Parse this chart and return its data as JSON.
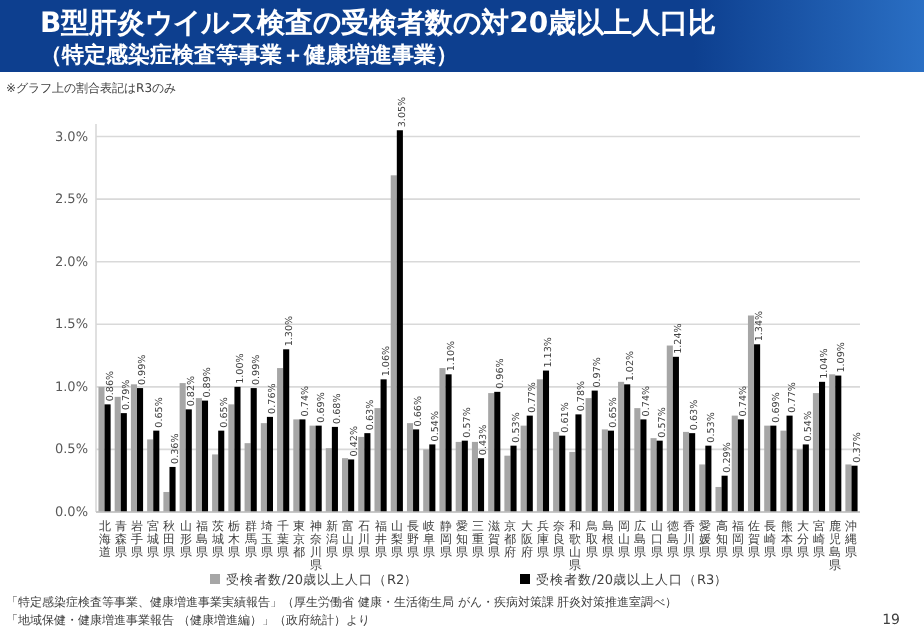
{
  "chart_data": {
    "type": "bar",
    "title": "B型肝炎ウイルス検査の受検者数の対20歳以上人口比",
    "subtitle": "（特定感染症検査等事業＋健康増進事業）",
    "categories": [
      "北海道",
      "青森県",
      "岩手県",
      "宮城県",
      "秋田県",
      "山形県",
      "福島県",
      "茨城県",
      "栃木県",
      "群馬県",
      "埼玉県",
      "千葉県",
      "東京都",
      "神奈川県",
      "新潟県",
      "富山県",
      "石川県",
      "福井県",
      "山梨県",
      "長野県",
      "岐阜県",
      "静岡県",
      "愛知県",
      "三重県",
      "滋賀県",
      "京都府",
      "大阪府",
      "兵庫県",
      "奈良県",
      "和歌山県",
      "鳥取県",
      "島根県",
      "岡山県",
      "広島県",
      "山口県",
      "徳島県",
      "香川県",
      "愛媛県",
      "高知県",
      "福岡県",
      "佐賀県",
      "長崎県",
      "熊本県",
      "大分県",
      "宮崎県",
      "鹿児島県",
      "沖縄県"
    ],
    "series": [
      {
        "name": "受検者数/20歳以上人口（R2）",
        "color": "#a6a6a6",
        "values": [
          1.0,
          0.92,
          1.02,
          0.58,
          0.16,
          1.03,
          0.91,
          0.46,
          0.86,
          0.55,
          0.71,
          1.15,
          0.74,
          0.69,
          0.51,
          0.43,
          0.6,
          0.83,
          2.69,
          0.71,
          0.5,
          1.15,
          0.56,
          0.56,
          0.95,
          0.45,
          0.69,
          1.06,
          0.64,
          0.48,
          0.91,
          0.66,
          1.04,
          0.83,
          0.59,
          1.33,
          0.64,
          0.38,
          0.2,
          0.77,
          1.57,
          0.69,
          0.65,
          0.5,
          0.95,
          1.1,
          0.38
        ]
      },
      {
        "name": "受検者数/20歳以上人口（R3）",
        "color": "#000000",
        "values": [
          0.86,
          0.79,
          0.99,
          0.65,
          0.36,
          0.82,
          0.89,
          0.65,
          1.0,
          0.99,
          0.76,
          1.3,
          0.74,
          0.69,
          0.68,
          0.42,
          0.63,
          1.06,
          3.05,
          0.66,
          0.54,
          1.1,
          0.57,
          0.43,
          0.96,
          0.53,
          0.77,
          1.13,
          0.61,
          0.78,
          0.97,
          0.65,
          1.02,
          0.74,
          0.57,
          1.24,
          0.63,
          0.53,
          0.29,
          0.74,
          1.34,
          0.69,
          0.77,
          0.54,
          1.04,
          1.09,
          0.37
        ],
        "value_labels": [
          "0.86%",
          "0.79%",
          "0.99%",
          "0.65%",
          "0.36%",
          "0.82%",
          "0.89%",
          "0.65%",
          "1.00%",
          "0.99%",
          "0.76%",
          "1.30%",
          "0.74%",
          "0.69%",
          "0.68%",
          "0.42%",
          "0.63%",
          "1.06%",
          "3.05%",
          "0.66%",
          "0.54%",
          "1.10%",
          "0.57%",
          "0.43%",
          "0.96%",
          "0.53%",
          "0.77%",
          "1.13%",
          "0.61%",
          "0.78%",
          "0.97%",
          "0.65%",
          "1.02%",
          "0.74%",
          "0.57%",
          "1.24%",
          "0.63%",
          "0.53%",
          "0.29%",
          "0.74%",
          "1.34%",
          "0.69%",
          "0.77%",
          "0.54%",
          "1.04%",
          "1.09%",
          "0.37%"
        ]
      }
    ],
    "ylim": [
      0,
      3.1
    ],
    "yticks": [
      {
        "value": 0,
        "label": "0.0%"
      },
      {
        "value": 0.5,
        "label": "0.5%"
      },
      {
        "value": 1,
        "label": "1.0%"
      },
      {
        "value": 1.5,
        "label": "1.5%"
      },
      {
        "value": 2,
        "label": "2.0%"
      },
      {
        "value": 2.5,
        "label": "2.5%"
      },
      {
        "value": 3,
        "label": "3.0%"
      }
    ],
    "grid": "y",
    "legend": "bottom",
    "annotations": [
      "※グラフ上の割合表記はR3のみ",
      "「特定感染症検査等事業、健康増進事業実績報告」（厚生労働省 健康・生活衛生局 がん・疾病対策課 肝炎対策推進室調べ）",
      "「地域保健・健康増進事業報告 （健康増進編）」（政府統計）より",
      "19"
    ]
  }
}
